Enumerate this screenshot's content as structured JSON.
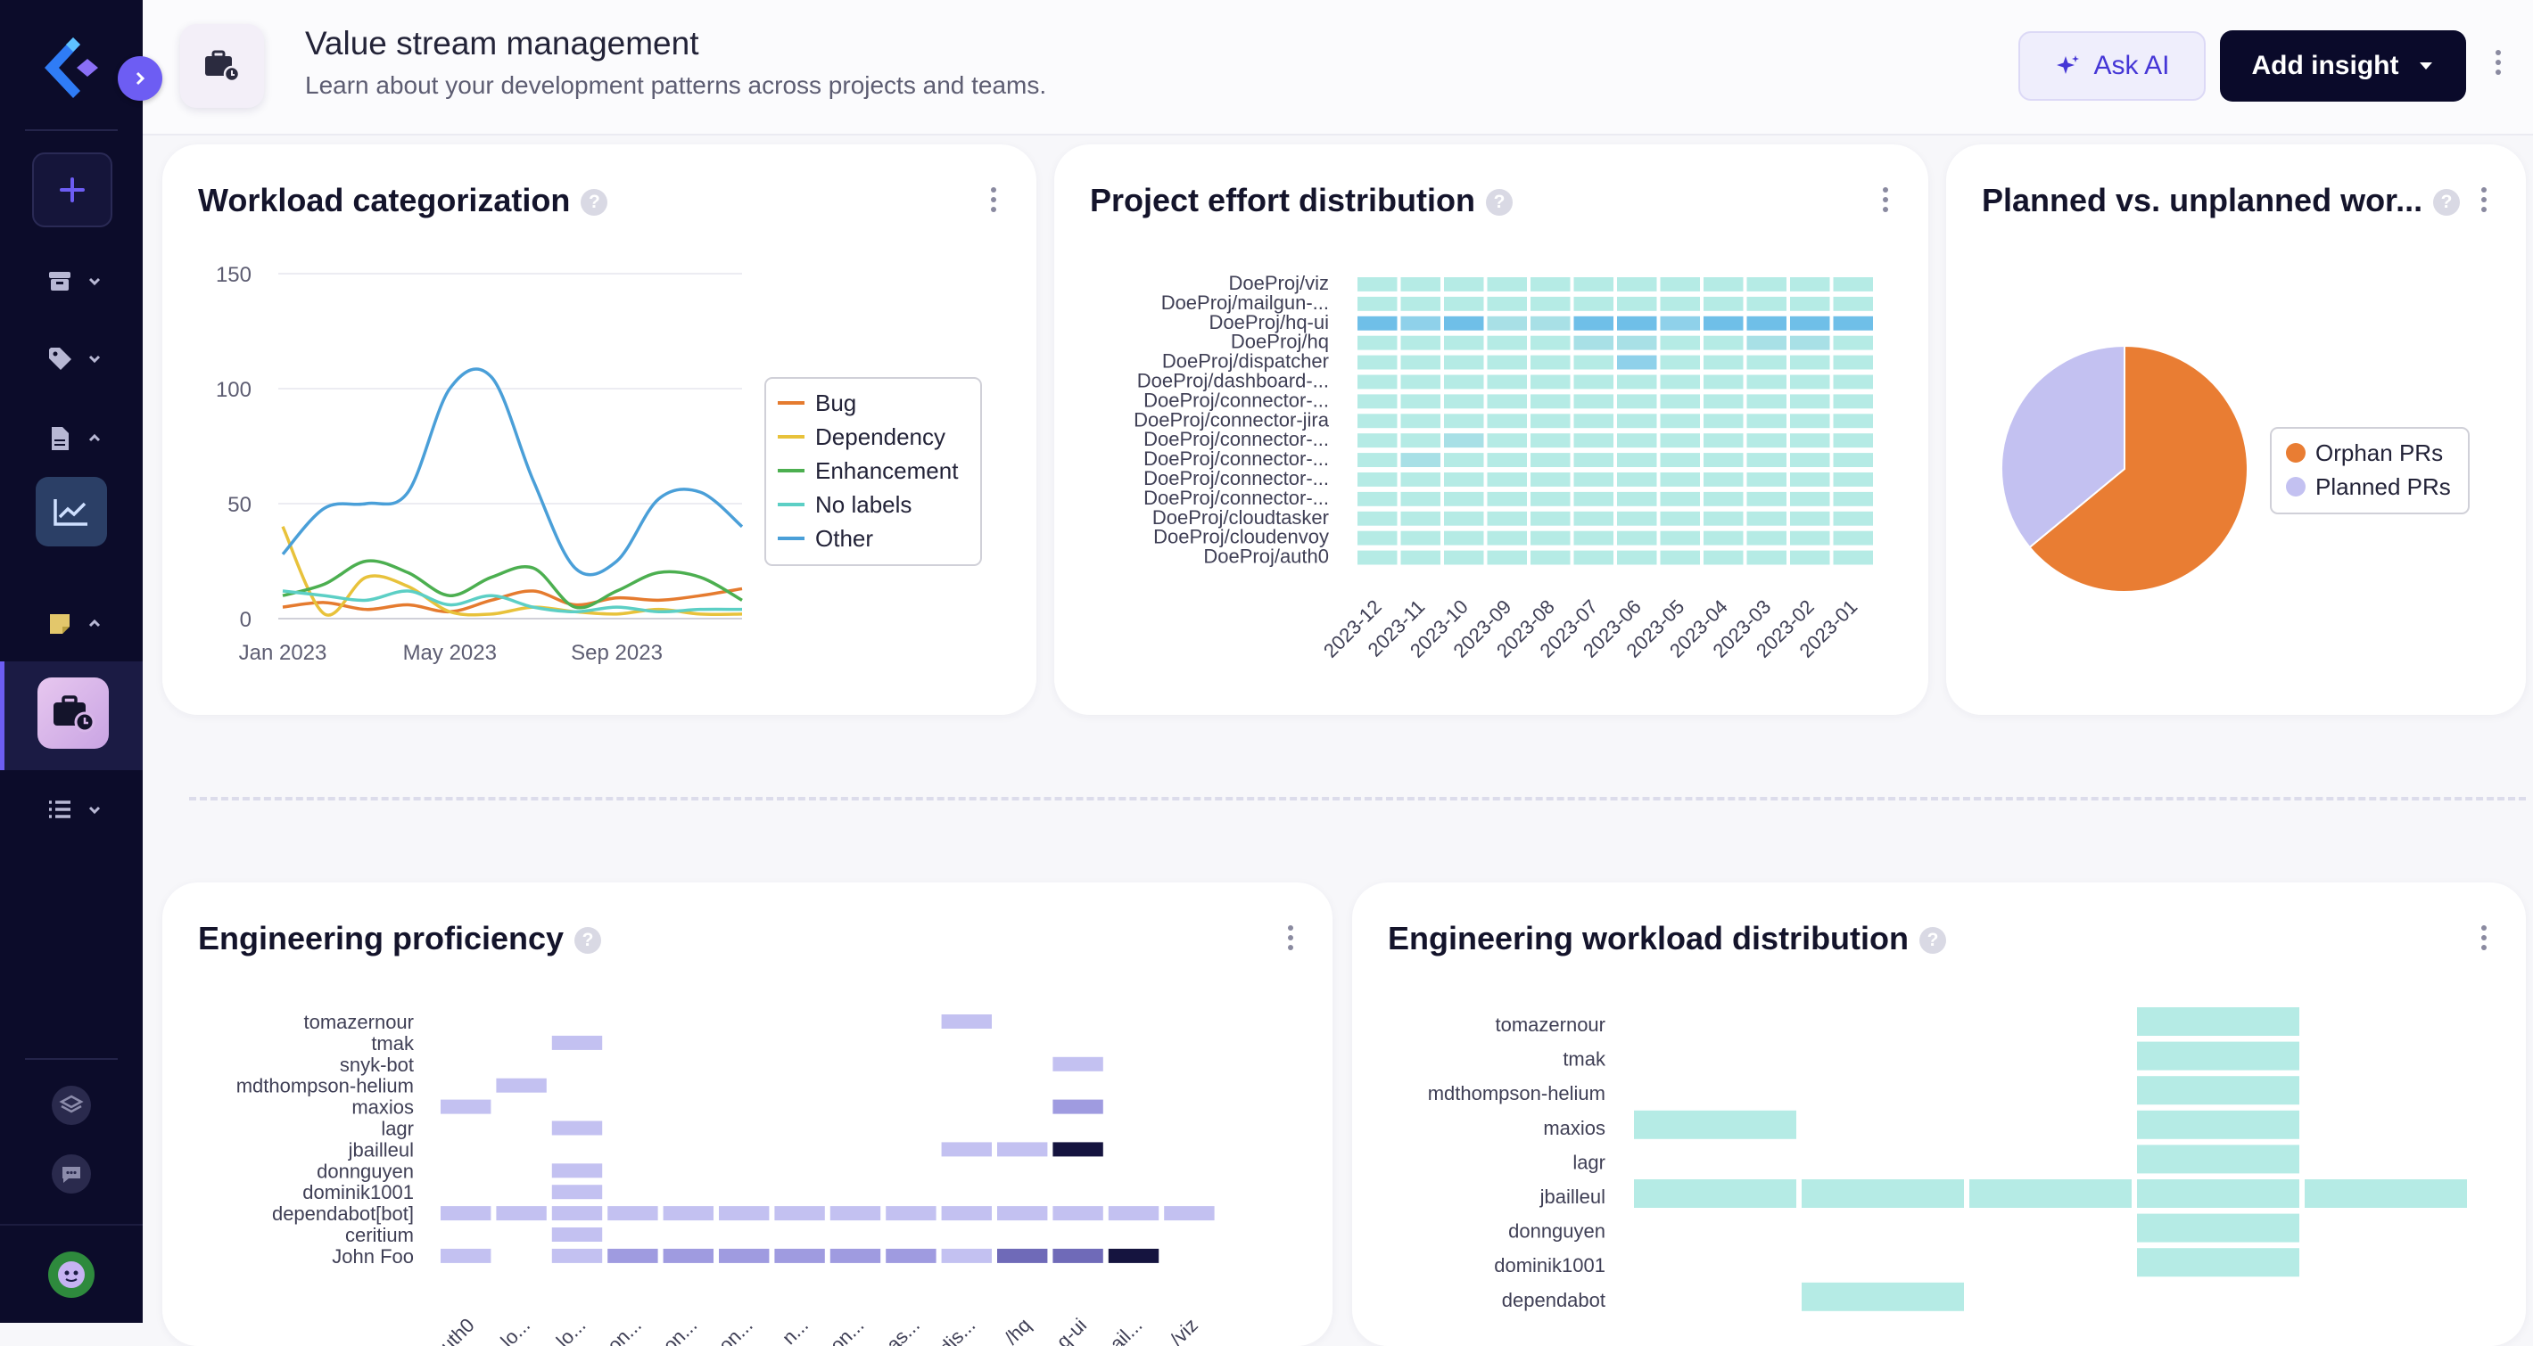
{
  "header": {
    "title": "Value stream management",
    "subtitle": "Learn about your development patterns across projects and teams.",
    "ask_ai_label": "Ask AI",
    "add_insight_label": "Add insight"
  },
  "colors": {
    "sidebar_bg": "#0c0c2a",
    "accent": "#6d5df3",
    "primary_button": "#0a0a2a",
    "heatmap_light": "#b5ebe5",
    "heatmap_dark": "#6fbfe8",
    "purple_scale": [
      "#c3c1f1",
      "#9f9be0",
      "#6f6ab8",
      "#15143f"
    ]
  },
  "sidebar": {
    "icons": [
      "logo-icon",
      "add-icon",
      "archive-icon",
      "tag-icon",
      "document-icon",
      "chart-icon",
      "note-icon",
      "briefcase-clock-icon",
      "list-icon",
      "layers-icon",
      "chat-icon",
      "avatar"
    ]
  },
  "cards": {
    "workload": {
      "title": "Workload categorization"
    },
    "effort": {
      "title": "Project effort distribution"
    },
    "planned": {
      "title": "Planned vs. unplanned wor..."
    },
    "proficiency": {
      "title": "Engineering proficiency"
    },
    "workload_dist": {
      "title": "Engineering workload distribution"
    }
  },
  "chart_data": [
    {
      "id": "workload",
      "type": "line",
      "title": "Workload categorization",
      "x_ticks": [
        "Jan 2023",
        "May 2023",
        "Sep 2023"
      ],
      "x": [
        "2023-01",
        "2023-02",
        "2023-03",
        "2023-04",
        "2023-05",
        "2023-06",
        "2023-07",
        "2023-08",
        "2023-09",
        "2023-10",
        "2023-11",
        "2023-12"
      ],
      "ylim": [
        0,
        150
      ],
      "y_ticks": [
        0,
        50,
        100,
        150
      ],
      "grid": true,
      "legend": "right",
      "series": [
        {
          "name": "Bug",
          "color": "#e57b2f",
          "values": [
            5,
            7,
            4,
            6,
            3,
            8,
            12,
            6,
            9,
            8,
            10,
            13
          ]
        },
        {
          "name": "Dependency",
          "color": "#e8c23b",
          "values": [
            40,
            2,
            18,
            14,
            3,
            2,
            5,
            3,
            2,
            4,
            2,
            2
          ]
        },
        {
          "name": "Enhancement",
          "color": "#4caf50",
          "values": [
            10,
            15,
            25,
            20,
            10,
            18,
            22,
            5,
            12,
            20,
            18,
            8
          ]
        },
        {
          "name": "No labels",
          "color": "#5ccfc5",
          "values": [
            12,
            10,
            8,
            12,
            6,
            10,
            5,
            3,
            5,
            3,
            4,
            4
          ]
        },
        {
          "name": "Other",
          "color": "#4a9fd8",
          "values": [
            28,
            48,
            50,
            55,
            100,
            105,
            60,
            22,
            25,
            52,
            55,
            40
          ]
        }
      ]
    },
    {
      "id": "effort",
      "type": "heatmap",
      "title": "Project effort distribution",
      "rows": [
        "DoeProj/viz",
        "DoeProj/mailgun-...",
        "DoeProj/hq-ui",
        "DoeProj/hq",
        "DoeProj/dispatcher",
        "DoeProj/dashboard-...",
        "DoeProj/connector-...",
        "DoeProj/connector-jira",
        "DoeProj/connector-...",
        "DoeProj/connector-...",
        "DoeProj/connector-...",
        "DoeProj/connector-...",
        "DoeProj/cloudtasker",
        "DoeProj/cloudenvoy",
        "DoeProj/auth0"
      ],
      "columns": [
        "2023-12",
        "2023-11",
        "2023-10",
        "2023-09",
        "2023-08",
        "2023-07",
        "2023-06",
        "2023-05",
        "2023-04",
        "2023-03",
        "2023-02",
        "2023-01"
      ],
      "values": [
        [
          0,
          0,
          0,
          0,
          0,
          0,
          0,
          0,
          0,
          0,
          0,
          0
        ],
        [
          0,
          0,
          0,
          0,
          0,
          0,
          0,
          0,
          0,
          0,
          0,
          0
        ],
        [
          3,
          2,
          3,
          1,
          1,
          3,
          3,
          2,
          3,
          3,
          3,
          3
        ],
        [
          0,
          0,
          0,
          0,
          0,
          1,
          1,
          0,
          0,
          1,
          1,
          0
        ],
        [
          0,
          0,
          0,
          0,
          0,
          0,
          2,
          0,
          0,
          0,
          0,
          0
        ],
        [
          0,
          0,
          0,
          0,
          0,
          0,
          0,
          0,
          0,
          0,
          0,
          0
        ],
        [
          0,
          0,
          0,
          0,
          0,
          0,
          0,
          0,
          0,
          0,
          0,
          0
        ],
        [
          0,
          0,
          0,
          0,
          0,
          0,
          0,
          0,
          0,
          0,
          0,
          0
        ],
        [
          0,
          0,
          1,
          0,
          0,
          0,
          0,
          0,
          0,
          0,
          0,
          0
        ],
        [
          0,
          1,
          0,
          0,
          0,
          0,
          0,
          0,
          0,
          0,
          0,
          0
        ],
        [
          0,
          0,
          0,
          0,
          0,
          0,
          0,
          0,
          0,
          0,
          0,
          0
        ],
        [
          0,
          0,
          0,
          0,
          0,
          0,
          0,
          0,
          0,
          0,
          0,
          0
        ],
        [
          0,
          0,
          0,
          0,
          0,
          0,
          0,
          0,
          0,
          0,
          0,
          0
        ],
        [
          0,
          0,
          0,
          0,
          0,
          0,
          0,
          0,
          0,
          0,
          0,
          0
        ],
        [
          0,
          0,
          0,
          0,
          0,
          0,
          0,
          0,
          0,
          0,
          0,
          0
        ]
      ]
    },
    {
      "id": "planned",
      "type": "pie",
      "title": "Planned vs. unplanned wor...",
      "legend": "right",
      "slices": [
        {
          "name": "Orphan PRs",
          "value": 64,
          "color": "#e97d33"
        },
        {
          "name": "Planned PRs",
          "value": 36,
          "color": "#c3c1f1"
        }
      ]
    },
    {
      "id": "proficiency",
      "type": "heatmap",
      "title": "Engineering proficiency",
      "rows": [
        "tomazernour",
        "tmak",
        "snyk-bot",
        "mdthompson-helium",
        "maxios",
        "lagr",
        "jbailleul",
        "donnguyen",
        "dominik1001",
        "dependabot[bot]",
        "ceritium",
        "John Foo"
      ],
      "columns": [
        "uth0",
        "lo...",
        "lo...",
        "on...",
        "on...",
        "on...",
        "n...",
        "on...",
        "as...",
        "dis...",
        "/hq",
        "q-ui",
        "ail...",
        "/viz"
      ],
      "values": [
        [
          0,
          0,
          0,
          0,
          0,
          0,
          0,
          0,
          0,
          1,
          0,
          0,
          0,
          0
        ],
        [
          0,
          0,
          1,
          0,
          0,
          0,
          0,
          0,
          0,
          0,
          0,
          0,
          0,
          0
        ],
        [
          0,
          0,
          0,
          0,
          0,
          0,
          0,
          0,
          0,
          0,
          0,
          1,
          0,
          0
        ],
        [
          0,
          1,
          0,
          0,
          0,
          0,
          0,
          0,
          0,
          0,
          0,
          0,
          0,
          0
        ],
        [
          1,
          0,
          0,
          0,
          0,
          0,
          0,
          0,
          0,
          0,
          0,
          2,
          0,
          0
        ],
        [
          0,
          0,
          1,
          0,
          0,
          0,
          0,
          0,
          0,
          0,
          0,
          0,
          0,
          0
        ],
        [
          0,
          0,
          0,
          0,
          0,
          0,
          0,
          0,
          0,
          1,
          1,
          4,
          0,
          0
        ],
        [
          0,
          0,
          1,
          0,
          0,
          0,
          0,
          0,
          0,
          0,
          0,
          0,
          0,
          0
        ],
        [
          0,
          0,
          1,
          0,
          0,
          0,
          0,
          0,
          0,
          0,
          0,
          0,
          0,
          0
        ],
        [
          1,
          1,
          1,
          1,
          1,
          1,
          1,
          1,
          1,
          1,
          1,
          1,
          1,
          1
        ],
        [
          0,
          0,
          1,
          0,
          0,
          0,
          0,
          0,
          0,
          0,
          0,
          0,
          0,
          0
        ],
        [
          1,
          0,
          1,
          2,
          2,
          2,
          2,
          2,
          2,
          1,
          3,
          3,
          4,
          0
        ]
      ]
    },
    {
      "id": "workload_dist",
      "type": "heatmap",
      "title": "Engineering workload distribution",
      "rows": [
        "tomazernour",
        "tmak",
        "mdthompson-helium",
        "maxios",
        "lagr",
        "jbailleul",
        "donnguyen",
        "dominik1001",
        "dependabot"
      ],
      "values": [
        [
          0,
          0,
          0,
          1,
          0
        ],
        [
          0,
          0,
          0,
          1,
          0
        ],
        [
          0,
          0,
          0,
          1,
          0
        ],
        [
          1,
          0,
          0,
          1,
          0
        ],
        [
          0,
          0,
          0,
          1,
          0
        ],
        [
          1,
          1,
          1,
          1,
          1
        ],
        [
          0,
          0,
          0,
          1,
          0
        ],
        [
          0,
          0,
          0,
          1,
          0
        ],
        [
          0,
          1,
          0,
          0,
          0
        ]
      ]
    }
  ]
}
